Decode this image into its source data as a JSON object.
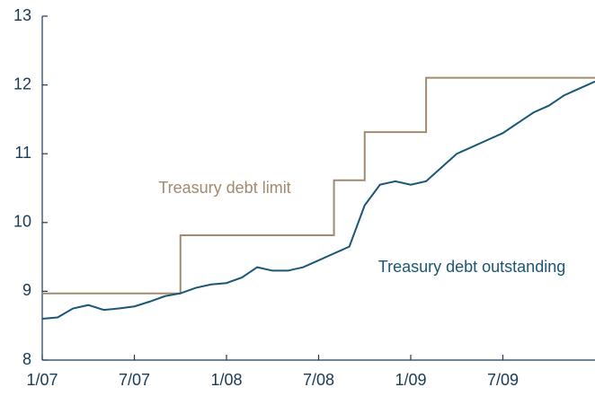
{
  "chart_data": {
    "type": "line",
    "annotations": [
      "Treasury debt limit",
      "Treasury debt outstanding"
    ],
    "series": [
      {
        "name": "Treasury debt limit",
        "color": "#a08a70",
        "x": [
          "2007-01",
          "2007-10",
          "2007-10",
          "2008-08",
          "2008-08",
          "2008-10",
          "2008-10",
          "2009-02",
          "2009-02",
          "2010-01"
        ],
        "values": [
          8.97,
          8.97,
          9.815,
          9.815,
          10.615,
          10.615,
          11.315,
          11.315,
          12.104,
          12.104
        ]
      },
      {
        "name": "Treasury debt outstanding",
        "color": "#1a5675",
        "x": [
          "2007-01",
          "2007-02",
          "2007-03",
          "2007-04",
          "2007-05",
          "2007-06",
          "2007-07",
          "2007-08",
          "2007-09",
          "2007-10",
          "2007-11",
          "2007-12",
          "2008-01",
          "2008-02",
          "2008-03",
          "2008-04",
          "2008-05",
          "2008-06",
          "2008-07",
          "2008-08",
          "2008-09",
          "2008-10",
          "2008-11",
          "2008-12",
          "2009-01",
          "2009-02",
          "2009-03",
          "2009-04",
          "2009-05",
          "2009-06",
          "2009-07",
          "2009-08",
          "2009-09",
          "2009-10",
          "2009-11",
          "2009-12",
          "2010-01"
        ],
        "values": [
          8.6,
          8.62,
          8.75,
          8.8,
          8.73,
          8.75,
          8.78,
          8.85,
          8.93,
          8.97,
          9.05,
          9.1,
          9.12,
          9.2,
          9.35,
          9.3,
          9.3,
          9.35,
          9.45,
          9.55,
          9.65,
          10.25,
          10.55,
          10.6,
          10.55,
          10.6,
          10.8,
          11.0,
          11.1,
          11.2,
          11.3,
          11.45,
          11.6,
          11.7,
          11.85,
          11.95,
          12.05
        ]
      }
    ],
    "xlim": [
      "2007-01",
      "2010-01"
    ],
    "xticks": [
      {
        "value": "2007-01",
        "label": "1/07"
      },
      {
        "value": "2007-07",
        "label": "7/07"
      },
      {
        "value": "2008-01",
        "label": "1/08"
      },
      {
        "value": "2008-07",
        "label": "7/08"
      },
      {
        "value": "2009-01",
        "label": "1/09"
      },
      {
        "value": "2009-07",
        "label": "7/09"
      }
    ],
    "ylim": [
      8,
      13
    ],
    "yticks": [
      8,
      9,
      10,
      11,
      12,
      13
    ],
    "grid": false
  }
}
